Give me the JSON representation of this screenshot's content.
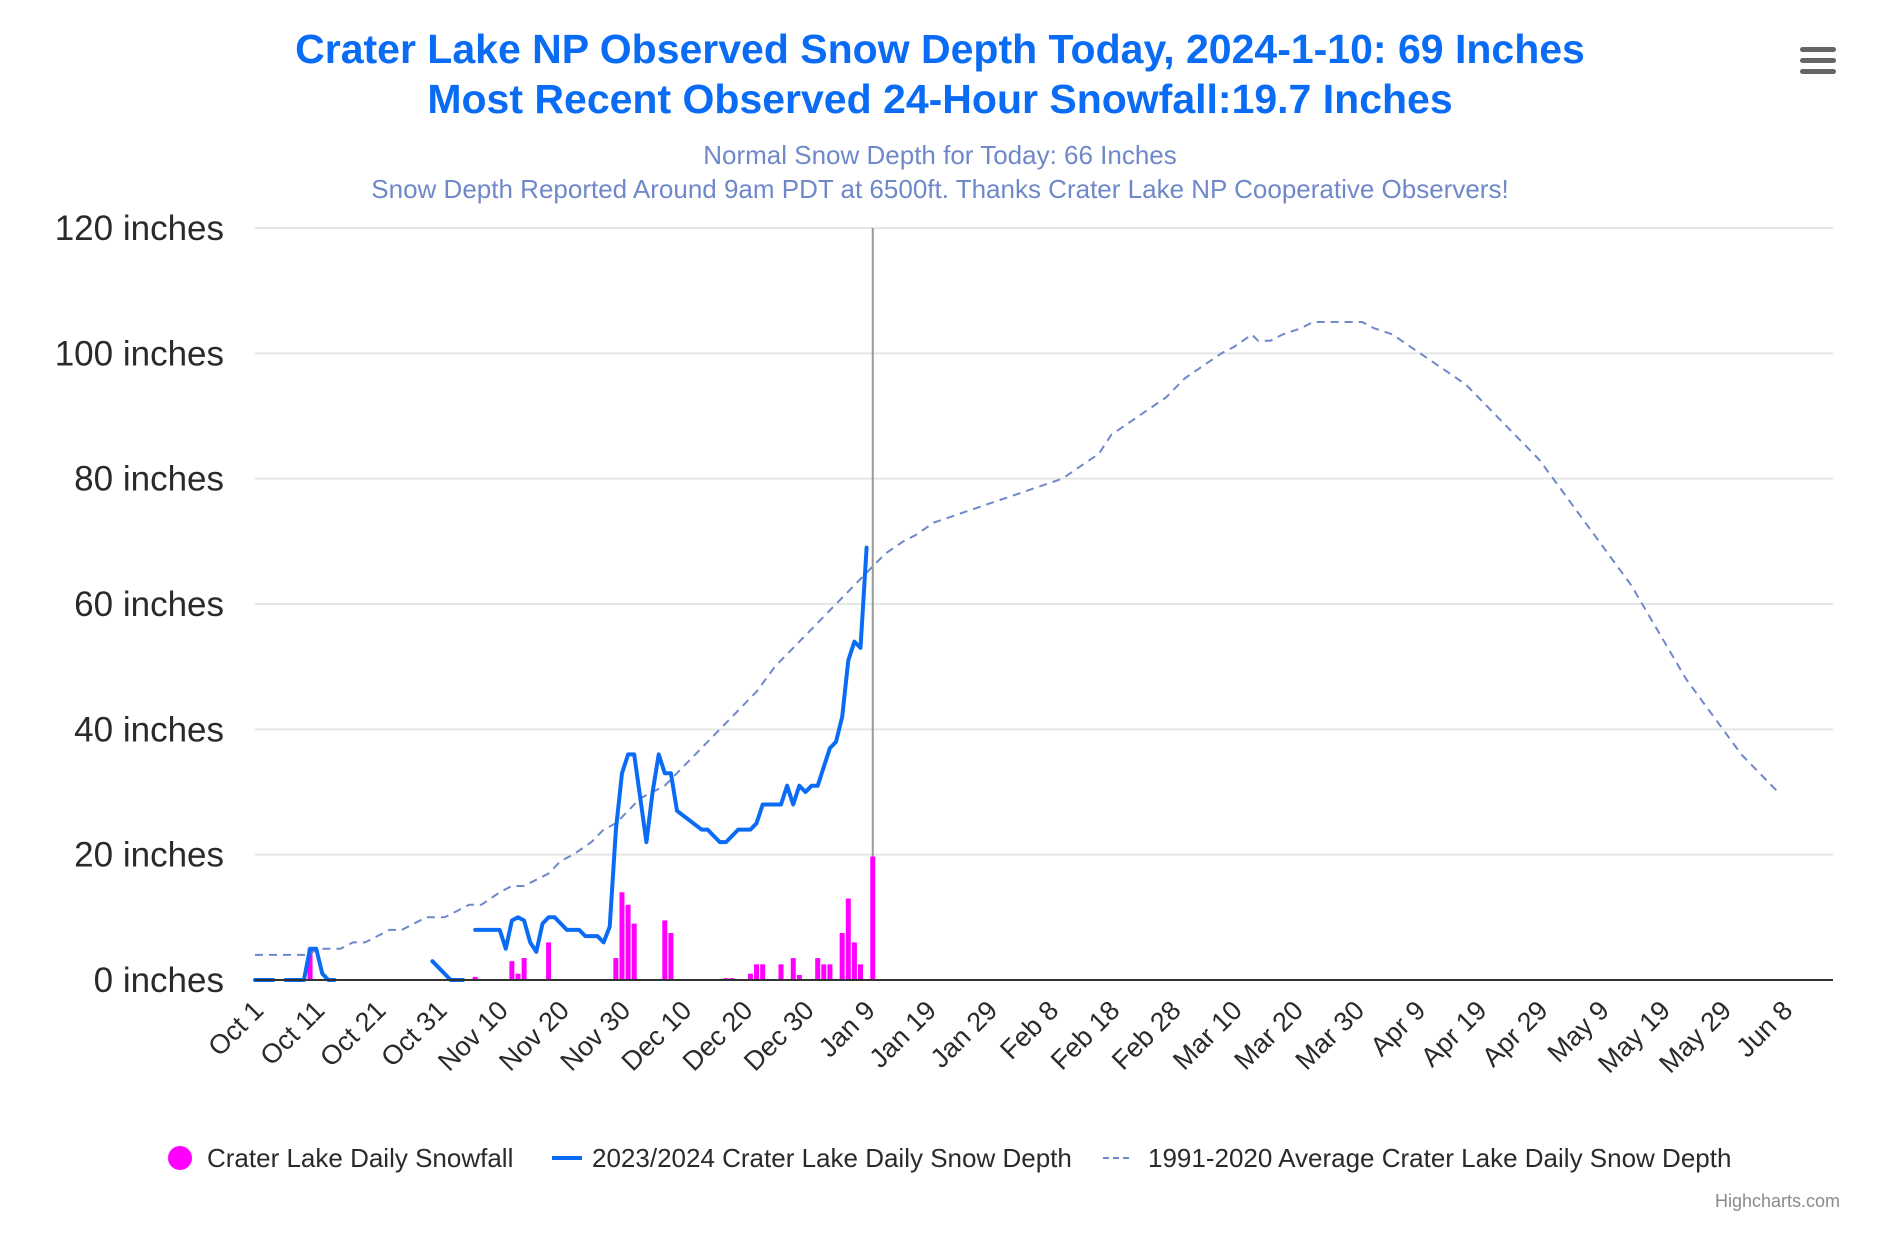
{
  "chart_data": {
    "type": "line",
    "title": "Crater Lake NP Observed Snow Depth Today, 2024-1-10: 69 Inches",
    "title_line2": "Most Recent Observed 24-Hour Snowfall:19.7 Inches",
    "subtitle": "Normal Snow Depth for Today: 66 Inches",
    "subtitle_line2": "Snow Depth Reported Around 9am PDT at 6500ft. Thanks Crater Lake NP Cooperative Observers!",
    "xlabel": "",
    "ylabel": "",
    "x_start": "Oct 1",
    "x_range_days": [
      0,
      258
    ],
    "ylim": [
      0,
      120
    ],
    "grid": true,
    "today_day": 101,
    "y_ticks": [
      {
        "value": 0,
        "label": "0 inches"
      },
      {
        "value": 20,
        "label": "20 inches"
      },
      {
        "value": 40,
        "label": "40 inches"
      },
      {
        "value": 60,
        "label": "60 inches"
      },
      {
        "value": 80,
        "label": "80 inches"
      },
      {
        "value": 100,
        "label": "100 inches"
      },
      {
        "value": 120,
        "label": "120 inches"
      }
    ],
    "x_ticks": [
      {
        "day": 0,
        "label": "Oct 1"
      },
      {
        "day": 10,
        "label": "Oct 11"
      },
      {
        "day": 20,
        "label": "Oct 21"
      },
      {
        "day": 30,
        "label": "Oct 31"
      },
      {
        "day": 40,
        "label": "Nov 10"
      },
      {
        "day": 50,
        "label": "Nov 20"
      },
      {
        "day": 60,
        "label": "Nov 30"
      },
      {
        "day": 70,
        "label": "Dec 10"
      },
      {
        "day": 80,
        "label": "Dec 20"
      },
      {
        "day": 90,
        "label": "Dec 30"
      },
      {
        "day": 100,
        "label": "Jan 9"
      },
      {
        "day": 110,
        "label": "Jan 19"
      },
      {
        "day": 120,
        "label": "Jan 29"
      },
      {
        "day": 130,
        "label": "Feb 8"
      },
      {
        "day": 140,
        "label": "Feb 18"
      },
      {
        "day": 150,
        "label": "Feb 28"
      },
      {
        "day": 160,
        "label": "Mar 10"
      },
      {
        "day": 170,
        "label": "Mar 20"
      },
      {
        "day": 180,
        "label": "Mar 30"
      },
      {
        "day": 190,
        "label": "Apr 9"
      },
      {
        "day": 200,
        "label": "Apr 19"
      },
      {
        "day": 210,
        "label": "Apr 29"
      },
      {
        "day": 220,
        "label": "May 9"
      },
      {
        "day": 230,
        "label": "May 19"
      },
      {
        "day": 240,
        "label": "May 29"
      },
      {
        "day": 250,
        "label": "Jun 8"
      }
    ],
    "series": [
      {
        "name": "Crater Lake Daily Snowfall",
        "kind": "column",
        "color": "#ff00ff",
        "points": [
          [
            9,
            5
          ],
          [
            32,
            0
          ],
          [
            36,
            0.5
          ],
          [
            42,
            3
          ],
          [
            43,
            1
          ],
          [
            44,
            3.5
          ],
          [
            48,
            6
          ],
          [
            59,
            3.5
          ],
          [
            60,
            14
          ],
          [
            61,
            12
          ],
          [
            62,
            9
          ],
          [
            67,
            9.5
          ],
          [
            68,
            7.5
          ],
          [
            77,
            0.3
          ],
          [
            78,
            0.3
          ],
          [
            81,
            1
          ],
          [
            82,
            2.5
          ],
          [
            83,
            2.5
          ],
          [
            86,
            2.5
          ],
          [
            88,
            3.5
          ],
          [
            89,
            0.8
          ],
          [
            92,
            3.5
          ],
          [
            93,
            2.5
          ],
          [
            94,
            2.5
          ],
          [
            96,
            7.5
          ],
          [
            97,
            13
          ],
          [
            98,
            6
          ],
          [
            99,
            2.5
          ],
          [
            101,
            19.7
          ]
        ]
      },
      {
        "name": "2023/2024 Crater Lake Daily Snow Depth",
        "kind": "line",
        "color": "#0a6cf5",
        "segments": [
          [
            [
              0,
              0
            ],
            [
              3,
              0
            ]
          ],
          [
            [
              5,
              0
            ],
            [
              8,
              0
            ],
            [
              9,
              5
            ],
            [
              10,
              5
            ],
            [
              11,
              1
            ],
            [
              12,
              0
            ],
            [
              13,
              0
            ]
          ],
          [
            [
              29,
              3
            ],
            [
              32,
              0
            ],
            [
              33,
              0
            ],
            [
              34,
              0
            ]
          ],
          [
            [
              36,
              8
            ],
            [
              40,
              8
            ],
            [
              41,
              5
            ],
            [
              42,
              9.5
            ],
            [
              43,
              10
            ],
            [
              44,
              9.5
            ],
            [
              45,
              6
            ],
            [
              46,
              4.5
            ],
            [
              47,
              9
            ],
            [
              48,
              10
            ],
            [
              49,
              10
            ],
            [
              50,
              9
            ],
            [
              51,
              8
            ],
            [
              53,
              8
            ],
            [
              54,
              7
            ],
            [
              56,
              7
            ],
            [
              57,
              6
            ],
            [
              58,
              8.5
            ],
            [
              59,
              24
            ],
            [
              60,
              33
            ],
            [
              61,
              36
            ],
            [
              62,
              36
            ],
            [
              63,
              29
            ],
            [
              64,
              22
            ],
            [
              65,
              30
            ],
            [
              66,
              36
            ],
            [
              67,
              33
            ],
            [
              68,
              33
            ],
            [
              69,
              27
            ],
            [
              71,
              25.5
            ],
            [
              73,
              24
            ],
            [
              74,
              24
            ],
            [
              76,
              22
            ],
            [
              77,
              22
            ],
            [
              79,
              24
            ],
            [
              81,
              24
            ],
            [
              82,
              25
            ],
            [
              83,
              28
            ],
            [
              86,
              28
            ],
            [
              87,
              31
            ],
            [
              88,
              28
            ],
            [
              89,
              31
            ],
            [
              90,
              30
            ],
            [
              91,
              31
            ],
            [
              92,
              31
            ],
            [
              94,
              37
            ],
            [
              95,
              38
            ],
            [
              96,
              42
            ],
            [
              97,
              51
            ],
            [
              98,
              54
            ],
            [
              99,
              53
            ],
            [
              100,
              69
            ]
          ]
        ]
      },
      {
        "name": "1991-2020 Average Crater Lake Daily Snow Depth",
        "kind": "line-dashed",
        "color": "#6f88c9",
        "points": [
          [
            0,
            4
          ],
          [
            9,
            4
          ],
          [
            10,
            5
          ],
          [
            14,
            5
          ],
          [
            16,
            6
          ],
          [
            18,
            6
          ],
          [
            20,
            7
          ],
          [
            22,
            8
          ],
          [
            24,
            8
          ],
          [
            26,
            9
          ],
          [
            28,
            10
          ],
          [
            31,
            10
          ],
          [
            33,
            11
          ],
          [
            35,
            12
          ],
          [
            37,
            12
          ],
          [
            40,
            14
          ],
          [
            42,
            15
          ],
          [
            44,
            15
          ],
          [
            46,
            16
          ],
          [
            48,
            17
          ],
          [
            50,
            19
          ],
          [
            52,
            20
          ],
          [
            55,
            22
          ],
          [
            57,
            24
          ],
          [
            59,
            25
          ],
          [
            61,
            27
          ],
          [
            63,
            29
          ],
          [
            65,
            30
          ],
          [
            67,
            31
          ],
          [
            70,
            34
          ],
          [
            73,
            37
          ],
          [
            76,
            40
          ],
          [
            79,
            43
          ],
          [
            82,
            46
          ],
          [
            85,
            50
          ],
          [
            88,
            53
          ],
          [
            91,
            56
          ],
          [
            94,
            59
          ],
          [
            97,
            62
          ],
          [
            100,
            65
          ],
          [
            101,
            66
          ],
          [
            103,
            68
          ],
          [
            106,
            70
          ],
          [
            108,
            71
          ],
          [
            111,
            73
          ],
          [
            114,
            74
          ],
          [
            117,
            75
          ],
          [
            120,
            76
          ],
          [
            123,
            77
          ],
          [
            126,
            78
          ],
          [
            129,
            79
          ],
          [
            132,
            80
          ],
          [
            135,
            82
          ],
          [
            138,
            84
          ],
          [
            140,
            87
          ],
          [
            143,
            89
          ],
          [
            146,
            91
          ],
          [
            149,
            93
          ],
          [
            152,
            96
          ],
          [
            155,
            98
          ],
          [
            158,
            100
          ],
          [
            160,
            101
          ],
          [
            163,
            103
          ],
          [
            164,
            102
          ],
          [
            166,
            102
          ],
          [
            168,
            103
          ],
          [
            171,
            104
          ],
          [
            173,
            105
          ],
          [
            181,
            105
          ],
          [
            183,
            104
          ],
          [
            186,
            103
          ],
          [
            189,
            101
          ],
          [
            192,
            99
          ],
          [
            195,
            97
          ],
          [
            198,
            95
          ],
          [
            201,
            92
          ],
          [
            204,
            89
          ],
          [
            207,
            86
          ],
          [
            210,
            83
          ],
          [
            213,
            79
          ],
          [
            216,
            75
          ],
          [
            219,
            71
          ],
          [
            222,
            67
          ],
          [
            225,
            63
          ],
          [
            228,
            58
          ],
          [
            231,
            53
          ],
          [
            234,
            48
          ],
          [
            237,
            44
          ],
          [
            240,
            40
          ],
          [
            243,
            36
          ],
          [
            246,
            33
          ],
          [
            249,
            30
          ]
        ]
      }
    ],
    "legend": {
      "placement": "bottom-center",
      "items": [
        {
          "label": "Crater Lake Daily Snowfall",
          "symbol": "circle",
          "color": "#ff00ff"
        },
        {
          "label": "2023/2024 Crater Lake Daily Snow Depth",
          "symbol": "line",
          "color": "#0a6cf5"
        },
        {
          "label": "1991-2020 Average Crater Lake Daily Snow Depth",
          "symbol": "dashed-line",
          "color": "#6f88c9"
        }
      ]
    },
    "credits": "Highcharts.com"
  },
  "ui": {
    "menu_icon": "hamburger-menu-icon"
  },
  "colors": {
    "title": "#0a6cf5",
    "subtitle": "#6f88c9",
    "snowfall": "#ff00ff",
    "depth": "#0a6cf5",
    "normal": "#6f88c9",
    "grid": "#e6e6e6",
    "axis": "#333333",
    "today_line": "#999999"
  }
}
